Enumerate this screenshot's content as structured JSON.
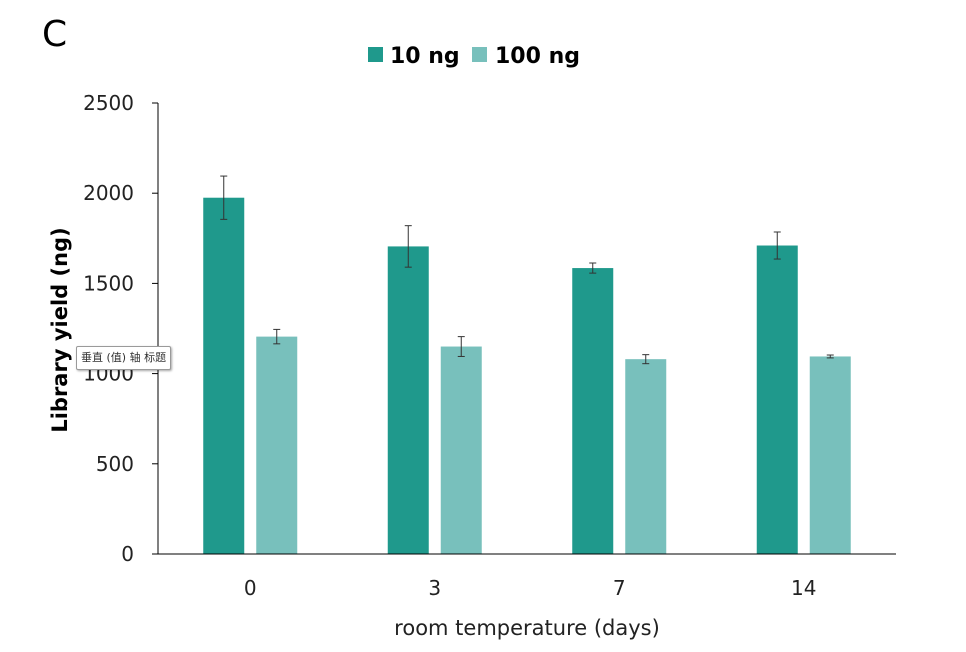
{
  "panel_label": "C",
  "tooltip_text": "垂直 (值) 轴 标题",
  "colors": {
    "series_10ng": "#1f998c",
    "series_100ng": "#78c0bc",
    "axis": "#000000",
    "error": "#333333"
  },
  "chart_data": {
    "type": "bar",
    "title": "",
    "xlabel": "room temperature (days)",
    "ylabel": "Library yield (ng)",
    "categories": [
      "0",
      "3",
      "7",
      "14"
    ],
    "ylim": [
      0,
      2500
    ],
    "yticks": [
      "0",
      "500",
      "1000",
      "1500",
      "2000",
      "2500"
    ],
    "grid": false,
    "legend_position": "top-center",
    "series": [
      {
        "name": "10 ng",
        "values": [
          1975,
          1705,
          1585,
          1710
        ],
        "errors": [
          120,
          115,
          28,
          75
        ]
      },
      {
        "name": "100 ng",
        "values": [
          1205,
          1150,
          1080,
          1095
        ],
        "errors": [
          40,
          55,
          25,
          8
        ]
      }
    ]
  }
}
